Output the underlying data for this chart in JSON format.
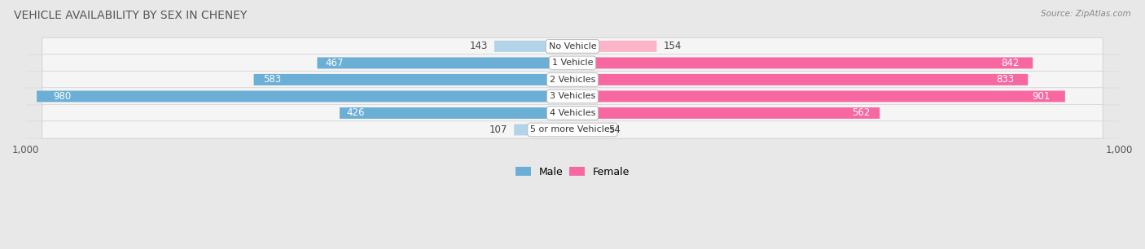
{
  "title": "VEHICLE AVAILABILITY BY SEX IN CHENEY",
  "source": "Source: ZipAtlas.com",
  "categories": [
    "No Vehicle",
    "1 Vehicle",
    "2 Vehicles",
    "3 Vehicles",
    "4 Vehicles",
    "5 or more Vehicles"
  ],
  "male_values": [
    143,
    467,
    583,
    980,
    426,
    107
  ],
  "female_values": [
    154,
    842,
    833,
    901,
    562,
    54
  ],
  "male_color": "#6baed6",
  "female_color": "#f768a1",
  "male_light_color": "#b3d4e8",
  "female_light_color": "#fbb4c8",
  "background_color": "#e8e8e8",
  "row_bg_color": "#f5f5f5",
  "xlim": 1000,
  "label_fontsize": 8.5,
  "title_fontsize": 10,
  "source_fontsize": 7.5,
  "category_fontsize": 8,
  "threshold": 350
}
